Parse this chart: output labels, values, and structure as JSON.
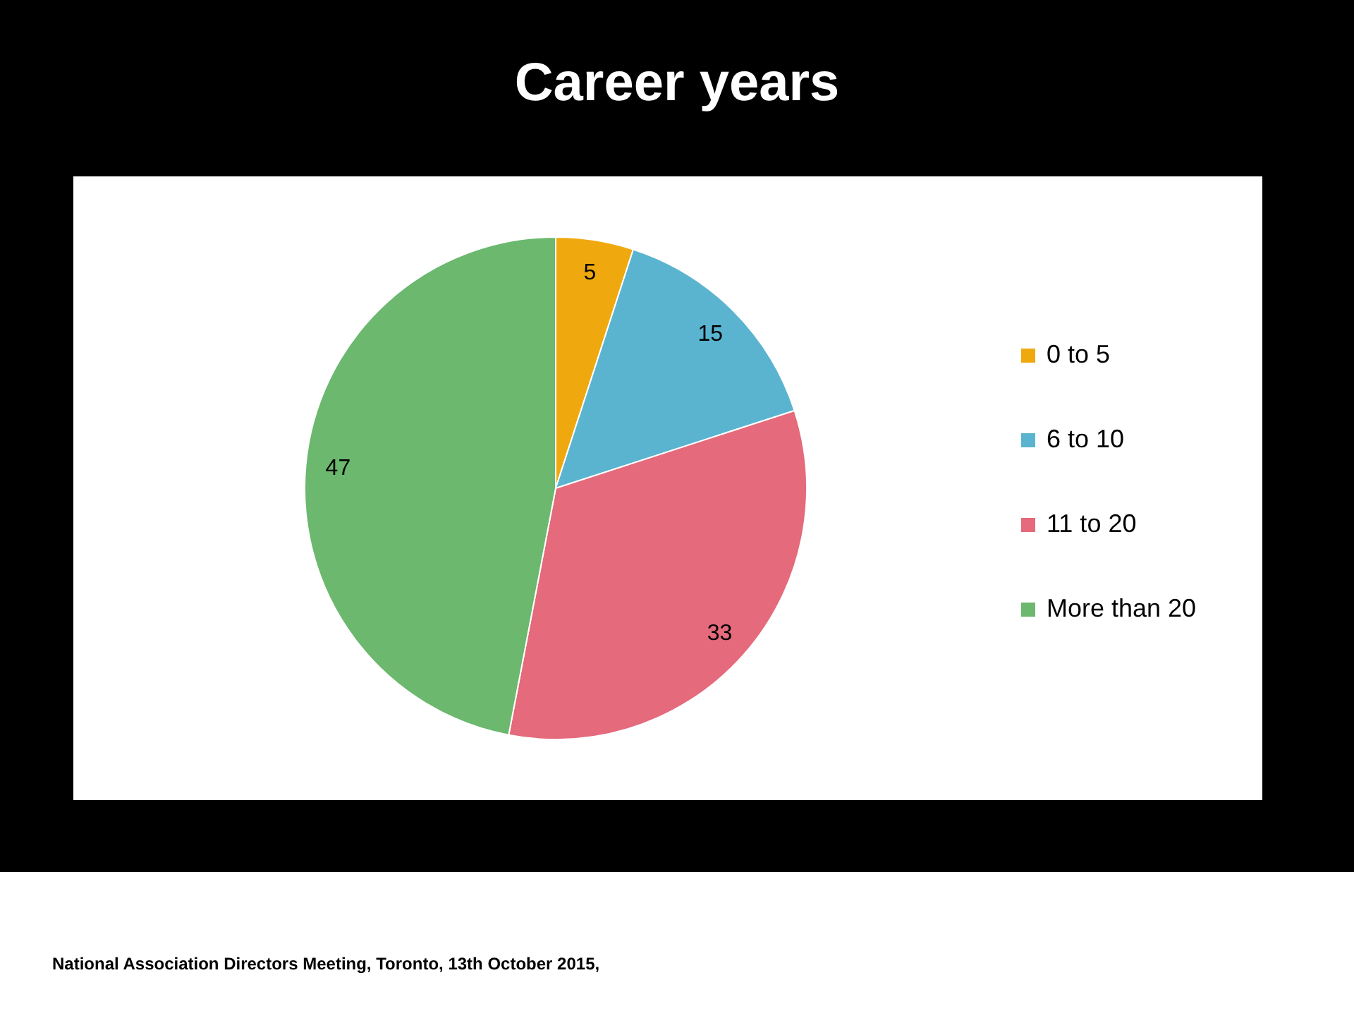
{
  "chart_data": {
    "type": "pie",
    "title": "Career years",
    "categories": [
      "0 to 5",
      "6 to 10",
      "11 to 20",
      "More than 20"
    ],
    "values": [
      5,
      15,
      33,
      47
    ],
    "colors": [
      "#efa90f",
      "#5ab4cf",
      "#e46a7c",
      "#6bb86e"
    ],
    "data_labels": true,
    "legend": "right",
    "annotations": [
      "National Association Directors Meeting, Toronto, 13th October 2015,"
    ]
  }
}
